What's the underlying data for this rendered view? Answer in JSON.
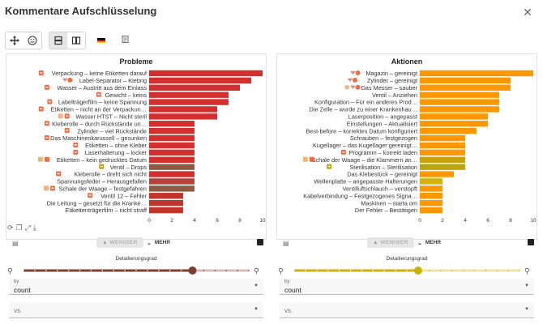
{
  "window": {
    "title": "Kommentare Aufschlüsselung",
    "close_icon": "✕"
  },
  "toolbar": {
    "icons": [
      "move-icon",
      "emoji-icon",
      "layout-vertical-icon",
      "layout-horizontal-icon",
      "flag-de-icon",
      "document-icon"
    ]
  },
  "panels": [
    {
      "title": "Probleme",
      "color": "#d32f2f",
      "slider_color": "#7b3e32",
      "chart_data": {
        "type": "bar",
        "orientation": "horizontal",
        "title": "Probleme",
        "xlim": [
          0,
          10
        ],
        "xticks": [
          0,
          2,
          4,
          6,
          8,
          10
        ],
        "categories": [
          "Verpackung – keine Etiketten darauf",
          "Label-Separator – Klebrig",
          "Wasser – Austritt aus dem Einlass",
          "Gewicht – keins",
          "Labelträgerfilm – keine Spannung",
          "Etiketten – nicht an der Verpackun…",
          "Wasser HTST – Nicht steril",
          "Kleberolle – durch Rückstände un…",
          "Zylinder – viel Rückstände",
          "Das Maschinenkarussell – gesunken",
          "Etiketten – ohne Kleber",
          "Laserhalterung – locker",
          "Etiketten – kein gedrucktes Datum",
          "Ventil – Drops",
          "Kleberolle – dreht sich nicht",
          "Spannungsfeder – Herausgefallen",
          "Schale der Waage – festgefahren",
          "Ventil 12 – Fehler",
          "Die Leitung – gesetzt für die Kranke…",
          "Etikettenträgerfilm – nicht straff"
        ],
        "values": [
          10,
          9,
          8,
          7,
          7,
          6,
          6,
          4,
          4,
          4,
          4,
          4,
          4,
          4,
          4,
          4,
          4,
          3,
          3,
          3
        ],
        "bar_colors": [
          "#d32f2f",
          "#d32f2f",
          "#d32f2f",
          "#d32f2f",
          "#d32f2f",
          "#d32f2f",
          "#d32f2f",
          "#d32f2f",
          "#d32f2f",
          "#d32f2f",
          "#d32f2f",
          "#d32f2f",
          "#d32f2f",
          "#8d5a44",
          "#d32f2f",
          "#b0423a",
          "#8d5a44",
          "#c0362c",
          "#c0362c",
          "#c0362c"
        ],
        "label_icons": [
          "orange",
          "heart-orange",
          "orange",
          "orange",
          "orange",
          "orange",
          "orange2",
          "orange",
          "orange",
          "orange",
          "orange",
          "orange",
          "calendar",
          "olive",
          "orange",
          "none",
          "orange2",
          "orange",
          "none",
          "none"
        ]
      },
      "under": {
        "less_label": "WENIGER",
        "more_label": "MEHR"
      },
      "detail": {
        "label": "Detailierungsgrad",
        "level": 0.75,
        "steps": 20
      },
      "by": {
        "label": "by",
        "value": "count"
      },
      "vs": {
        "placeholder": "vs."
      }
    },
    {
      "title": "Aktionen",
      "color": "#ff9800",
      "slider_color": "#c9b30a",
      "chart_data": {
        "type": "bar",
        "orientation": "horizontal",
        "title": "Aktionen",
        "xlim": [
          0,
          10
        ],
        "xticks": [
          0,
          2,
          4,
          6,
          8,
          10
        ],
        "categories": [
          "Magazin – gereinigt",
          "Zylinder – gereinigt",
          "Das Messer – sauber",
          "Ventil – Anziehen",
          "Konfiguration – Für ein anderes Prod…",
          "Die Zelle – wurde zu einer Krankenhau…",
          "Laserposition – angepasst",
          "Einstellungen – Aktualisiert",
          "Best-before – korrektes Datum konfiguriert",
          "Schrauben – festgezogen",
          "Kugellager – das Kugellager gereinigt…",
          "Programm – korrekt laden",
          "Schale der Waage – die Klammern an…",
          "Sterilisation – Sterilisation",
          "Das Klebestück – gereinigt",
          "Wellenplatte – angepasste Halterungen",
          "Ventilluftschlauch – verstopft",
          "Kabelverbindung – Festgezogenes Signa…",
          "Maskinen – starta om",
          "Der Fehler – Bestätigen"
        ],
        "values": [
          10,
          8,
          8,
          7,
          7,
          7,
          6,
          6,
          5,
          4,
          4,
          4,
          4,
          4,
          3,
          2,
          2,
          2,
          2,
          2
        ],
        "bar_colors": [
          "#ff9800",
          "#ff9800",
          "#ff9800",
          "#ff9800",
          "#ff9800",
          "#ff9800",
          "#ff9800",
          "#ff9800",
          "#ff9800",
          "#ff9800",
          "#ff9800",
          "#ff9800",
          "#c9a20a",
          "#b8a60c",
          "#ff9800",
          "#d4b00a",
          "#ff9800",
          "#ff9800",
          "#ff9800",
          "#ff9800"
        ],
        "label_icons": [
          "heart-orange",
          "heart-orange",
          "heart-orange2",
          "none",
          "none",
          "none",
          "none",
          "none",
          "none",
          "none",
          "none",
          "orange",
          "calendar",
          "olive",
          "none",
          "none",
          "none",
          "none",
          "none",
          "none"
        ]
      },
      "under": {
        "less_label": "WENIGER",
        "more_label": "MEHR"
      },
      "detail": {
        "label": "Detailierungsgrad",
        "level": 0.55,
        "steps": 20
      },
      "by": {
        "label": "by",
        "value": "count"
      },
      "vs": {
        "placeholder": "vs."
      }
    }
  ]
}
